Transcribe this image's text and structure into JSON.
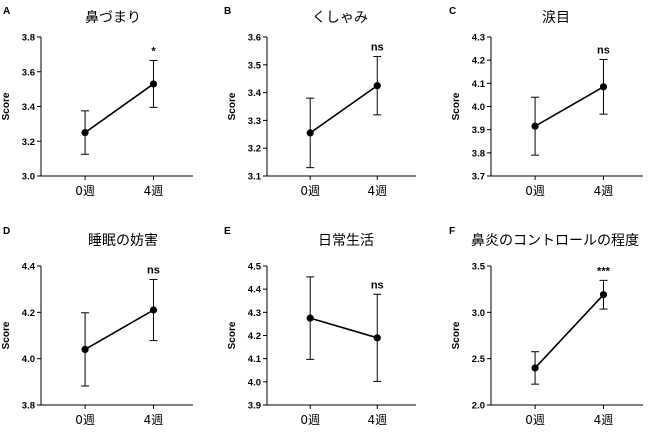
{
  "chart_data": [
    {
      "letter": "A",
      "title": "鼻づまり",
      "type": "line",
      "ylabel": "Score",
      "categories": [
        "0週",
        "4週"
      ],
      "values": [
        3.25,
        3.53
      ],
      "error": [
        0.125,
        0.135
      ],
      "ylim": [
        3.0,
        3.8
      ],
      "yticks": [
        "3.0",
        "3.2",
        "3.4",
        "3.6",
        "3.8"
      ],
      "significance": "*"
    },
    {
      "letter": "B",
      "title": "くしゃみ",
      "type": "line",
      "ylabel": "Score",
      "categories": [
        "0週",
        "4週"
      ],
      "values": [
        3.255,
        3.425
      ],
      "error": [
        0.125,
        0.105
      ],
      "ylim": [
        3.1,
        3.6
      ],
      "yticks": [
        "3.1",
        "3.2",
        "3.3",
        "3.4",
        "3.5",
        "3.6"
      ],
      "significance": "ns"
    },
    {
      "letter": "C",
      "title": "涙目",
      "type": "line",
      "ylabel": "Score",
      "categories": [
        "0週",
        "4週"
      ],
      "values": [
        3.915,
        4.085
      ],
      "error": [
        0.125,
        0.118
      ],
      "ylim": [
        3.7,
        4.3
      ],
      "yticks": [
        "3.7",
        "3.8",
        "3.9",
        "4.0",
        "4.1",
        "4.2",
        "4.3"
      ],
      "significance": "ns"
    },
    {
      "letter": "D",
      "title": "睡眠の妨害",
      "type": "line",
      "ylabel": "Score",
      "categories": [
        "0週",
        "4週"
      ],
      "values": [
        4.04,
        4.21
      ],
      "error": [
        0.158,
        0.132
      ],
      "ylim": [
        3.8,
        4.4
      ],
      "yticks": [
        "3.8",
        "4.0",
        "4.2",
        "4.4"
      ],
      "significance": "ns"
    },
    {
      "letter": "E",
      "title": "日常生活",
      "type": "line",
      "ylabel": "Score",
      "categories": [
        "0週",
        "4週"
      ],
      "values": [
        4.275,
        4.19
      ],
      "error": [
        0.178,
        0.188
      ],
      "ylim": [
        3.9,
        4.5
      ],
      "yticks": [
        "3.9",
        "4.0",
        "4.1",
        "4.2",
        "4.3",
        "4.4",
        "4.5"
      ],
      "significance": "ns"
    },
    {
      "letter": "F",
      "title": "鼻炎のコントロールの程度",
      "type": "line",
      "ylabel": "Score",
      "categories": [
        "0週",
        "4週"
      ],
      "values": [
        2.4,
        3.19
      ],
      "error": [
        0.175,
        0.155
      ],
      "ylim": [
        2.0,
        3.5
      ],
      "yticks": [
        "2.0",
        "2.5",
        "3.0",
        "3.5"
      ],
      "significance": "***"
    }
  ]
}
